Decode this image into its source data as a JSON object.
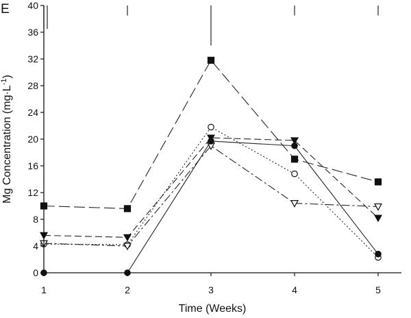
{
  "chart_data": {
    "type": "line",
    "panel_label": "E",
    "xlabel": "Time (Weeks)",
    "ylabel": "Mg Concentration (mg·L⁻¹)",
    "ylabel_parts": {
      "main": "Mg Concentration (mg·L",
      "superscript": "-1",
      "close": ")"
    },
    "x": [
      1,
      2,
      3,
      4,
      5
    ],
    "xlim": [
      1,
      5.3
    ],
    "ylim": [
      0,
      40
    ],
    "xticks": [
      1,
      2,
      3,
      4,
      5
    ],
    "yticks": [
      0,
      4,
      8,
      12,
      16,
      20,
      24,
      28,
      32,
      36,
      40
    ],
    "error_bars_top": [
      {
        "x": 1,
        "from": 36.5,
        "to": 40
      },
      {
        "x": 2,
        "from": 38.5,
        "to": 40
      },
      {
        "x": 3,
        "from": 34,
        "to": 40
      },
      {
        "x": 4,
        "from": 38.5,
        "to": 40
      },
      {
        "x": 5,
        "from": 38.5,
        "to": 40
      }
    ],
    "series": [
      {
        "name": "filled-square",
        "marker": "square",
        "fill": "filled",
        "line": "long-dash",
        "values": [
          10.0,
          9.6,
          31.8,
          17.0,
          13.6
        ]
      },
      {
        "name": "filled-triangle-down",
        "marker": "triangle-down",
        "fill": "filled",
        "line": "dash",
        "values": [
          5.6,
          5.3,
          20.2,
          19.8,
          8.2
        ]
      },
      {
        "name": "open-circle",
        "marker": "circle",
        "fill": "open",
        "line": "dot",
        "values": [
          4.3,
          4.2,
          21.8,
          14.8,
          2.3
        ]
      },
      {
        "name": "open-triangle-down",
        "marker": "triangle-down",
        "fill": "open",
        "line": "dash-dot",
        "values": [
          4.4,
          4.0,
          19.0,
          10.4,
          9.9
        ]
      },
      {
        "name": "filled-circle",
        "marker": "circle",
        "fill": "filled",
        "line": "solid",
        "values": [
          0.0,
          0.0,
          19.7,
          19.0,
          2.8
        ]
      }
    ]
  }
}
